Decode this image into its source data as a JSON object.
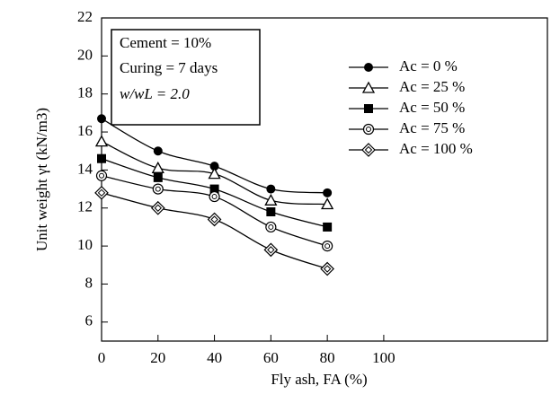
{
  "chart_data": {
    "type": "line",
    "xlabel": "Fly ash,  FA (%)",
    "ylabel": "Unit weight γt (kN/m3)",
    "annotations": [
      "Cement = 10%",
      "Curing = 7 days",
      "w/wL = 2.0"
    ],
    "x": [
      0,
      20,
      40,
      60,
      80
    ],
    "xlim": [
      0,
      158
    ],
    "xticks": [
      0,
      20,
      40,
      60,
      80,
      100
    ],
    "ylim": [
      5,
      22
    ],
    "yticks": [
      6,
      8,
      10,
      12,
      14,
      16,
      18,
      20,
      22
    ],
    "series": [
      {
        "name": "Ac = 0 %",
        "color": "#000000",
        "marker": "circle-filled",
        "values": [
          16.7,
          15.0,
          14.2,
          13.0,
          12.8
        ]
      },
      {
        "name": "Ac = 25 %",
        "color": "#000000",
        "marker": "triangle-open",
        "values": [
          15.5,
          14.1,
          13.8,
          12.4,
          12.2
        ]
      },
      {
        "name": "Ac = 50 %",
        "color": "#000000",
        "marker": "square-filled",
        "values": [
          14.6,
          13.6,
          13.0,
          11.8,
          11.0
        ]
      },
      {
        "name": "Ac = 75 %",
        "color": "#000000",
        "marker": "circle-dot",
        "values": [
          13.7,
          13.0,
          12.6,
          11.0,
          10.0
        ]
      },
      {
        "name": "Ac = 100 %",
        "color": "#000000",
        "marker": "diamond-double",
        "values": [
          12.8,
          12.0,
          11.4,
          9.8,
          8.8
        ]
      }
    ]
  }
}
